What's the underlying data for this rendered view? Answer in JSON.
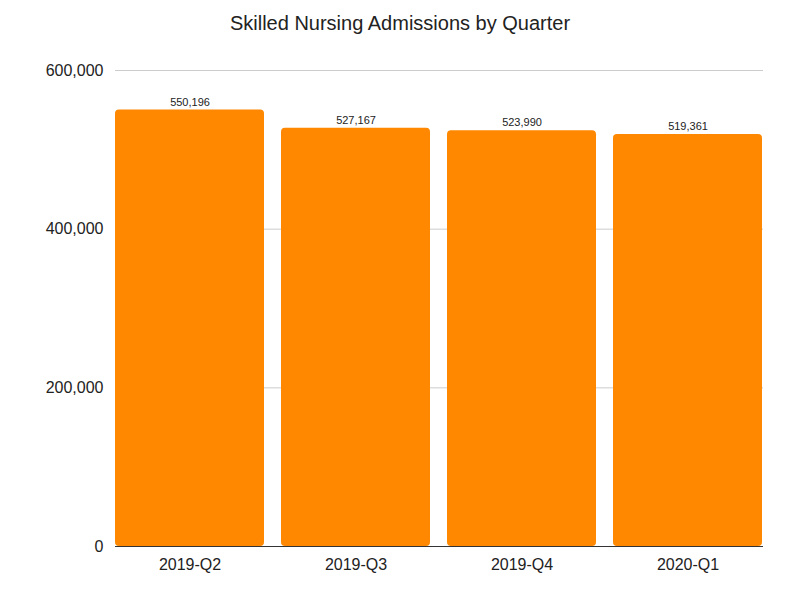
{
  "chart_data": {
    "type": "bar",
    "title": "Skilled Nursing Admissions by Quarter",
    "categories": [
      "2019-Q2",
      "2019-Q3",
      "2019-Q4",
      "2020-Q1"
    ],
    "values": [
      550196,
      527167,
      523990,
      519361
    ],
    "value_labels": [
      "550,196",
      "527,167",
      "523,990",
      "519,361"
    ],
    "color": "#ff8800",
    "ylim": [
      0,
      600000
    ],
    "yticks": [
      0,
      {
        "value": 200000,
        "label": "200,000"
      },
      {
        "value": 400000,
        "label": "400,000"
      },
      {
        "value": 600000,
        "label": "600,000"
      }
    ],
    "grid": true,
    "data_labels": true
  }
}
